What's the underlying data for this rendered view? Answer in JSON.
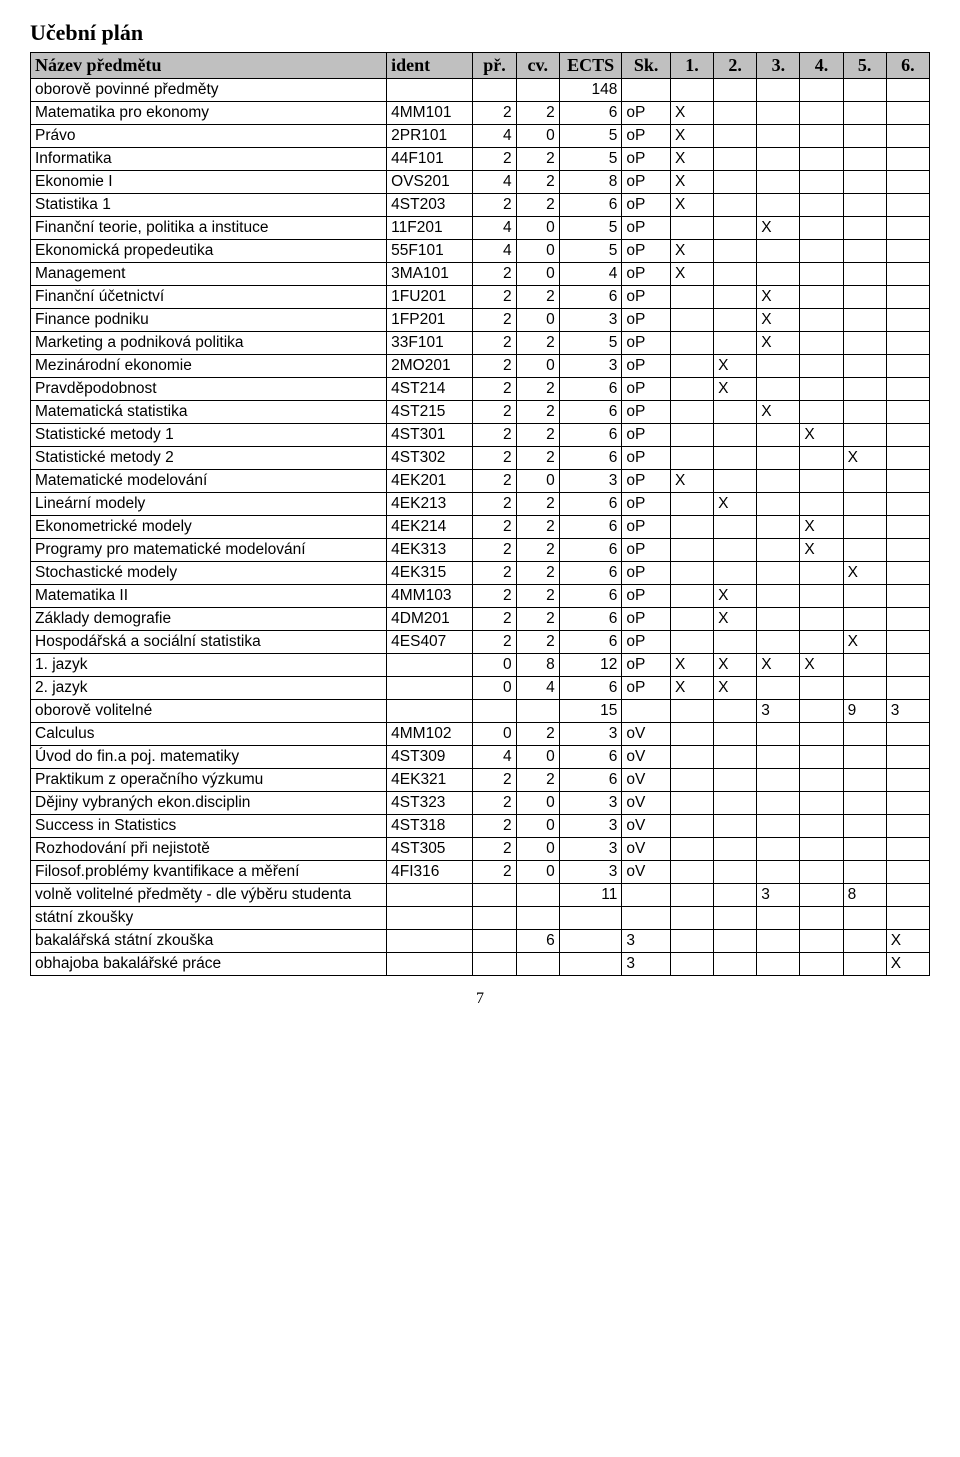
{
  "title": "Učební plán",
  "page_number": "7",
  "columns": [
    "Název předmětu",
    "ident",
    "př.",
    "cv.",
    "ECTS",
    "Sk.",
    "1.",
    "2.",
    "3.",
    "4.",
    "5.",
    "6."
  ],
  "rows": [
    {
      "name": "oborově povinné předměty",
      "ident": "",
      "pr": "",
      "cv": "",
      "ects": "148",
      "sk": "",
      "s1": "",
      "s2": "",
      "s3": "",
      "s4": "",
      "s5": "",
      "s6": ""
    },
    {
      "name": "Matematika pro ekonomy",
      "ident": "4MM101",
      "pr": "2",
      "cv": "2",
      "ects": "6",
      "sk": "oP",
      "s1": "X",
      "s2": "",
      "s3": "",
      "s4": "",
      "s5": "",
      "s6": ""
    },
    {
      "name": "Právo",
      "ident": "2PR101",
      "pr": "4",
      "cv": "0",
      "ects": "5",
      "sk": "oP",
      "s1": "X",
      "s2": "",
      "s3": "",
      "s4": "",
      "s5": "",
      "s6": ""
    },
    {
      "name": "Informatika",
      "ident": "44F101",
      "pr": "2",
      "cv": "2",
      "ects": "5",
      "sk": "oP",
      "s1": "X",
      "s2": "",
      "s3": "",
      "s4": "",
      "s5": "",
      "s6": ""
    },
    {
      "name": "Ekonomie I",
      "ident": "OVS201",
      "pr": "4",
      "cv": "2",
      "ects": "8",
      "sk": "oP",
      "s1": "X",
      "s2": "",
      "s3": "",
      "s4": "",
      "s5": "",
      "s6": ""
    },
    {
      "name": "Statistika 1",
      "ident": "4ST203",
      "pr": "2",
      "cv": "2",
      "ects": "6",
      "sk": "oP",
      "s1": "X",
      "s2": "",
      "s3": "",
      "s4": "",
      "s5": "",
      "s6": ""
    },
    {
      "name": "Finanční teorie, politika a instituce",
      "ident": "11F201",
      "pr": "4",
      "cv": "0",
      "ects": "5",
      "sk": "oP",
      "s1": "",
      "s2": "",
      "s3": "X",
      "s4": "",
      "s5": "",
      "s6": ""
    },
    {
      "name": "Ekonomická propedeutika",
      "ident": "55F101",
      "pr": "4",
      "cv": "0",
      "ects": "5",
      "sk": "oP",
      "s1": "X",
      "s2": "",
      "s3": "",
      "s4": "",
      "s5": "",
      "s6": ""
    },
    {
      "name": "Management",
      "ident": "3MA101",
      "pr": "2",
      "cv": "0",
      "ects": "4",
      "sk": "oP",
      "s1": "X",
      "s2": "",
      "s3": "",
      "s4": "",
      "s5": "",
      "s6": ""
    },
    {
      "name": "Finanční účetnictví",
      "ident": "1FU201",
      "pr": "2",
      "cv": "2",
      "ects": "6",
      "sk": "oP",
      "s1": "",
      "s2": "",
      "s3": "X",
      "s4": "",
      "s5": "",
      "s6": ""
    },
    {
      "name": "Finance podniku",
      "ident": "1FP201",
      "pr": "2",
      "cv": "0",
      "ects": "3",
      "sk": "oP",
      "s1": "",
      "s2": "",
      "s3": "X",
      "s4": "",
      "s5": "",
      "s6": ""
    },
    {
      "name": "Marketing a podniková politika",
      "ident": "33F101",
      "pr": "2",
      "cv": "2",
      "ects": "5",
      "sk": "oP",
      "s1": "",
      "s2": "",
      "s3": "X",
      "s4": "",
      "s5": "",
      "s6": ""
    },
    {
      "name": "Mezinárodní ekonomie",
      "ident": "2MO201",
      "pr": "2",
      "cv": "0",
      "ects": "3",
      "sk": "oP",
      "s1": "",
      "s2": "X",
      "s3": "",
      "s4": "",
      "s5": "",
      "s6": ""
    },
    {
      "name": "Pravděpodobnost",
      "ident": "4ST214",
      "pr": "2",
      "cv": "2",
      "ects": "6",
      "sk": "oP",
      "s1": "",
      "s2": "X",
      "s3": "",
      "s4": "",
      "s5": "",
      "s6": ""
    },
    {
      "name": "Matematická statistika",
      "ident": "4ST215",
      "pr": "2",
      "cv": "2",
      "ects": "6",
      "sk": "oP",
      "s1": "",
      "s2": "",
      "s3": "X",
      "s4": "",
      "s5": "",
      "s6": ""
    },
    {
      "name": "Statistické metody 1",
      "ident": "4ST301",
      "pr": "2",
      "cv": "2",
      "ects": "6",
      "sk": "oP",
      "s1": "",
      "s2": "",
      "s3": "",
      "s4": "X",
      "s5": "",
      "s6": ""
    },
    {
      "name": "Statistické metody 2",
      "ident": "4ST302",
      "pr": "2",
      "cv": "2",
      "ects": "6",
      "sk": "oP",
      "s1": "",
      "s2": "",
      "s3": "",
      "s4": "",
      "s5": "X",
      "s6": ""
    },
    {
      "name": "Matematické modelování",
      "ident": "4EK201",
      "pr": "2",
      "cv": "0",
      "ects": "3",
      "sk": "oP",
      "s1": "X",
      "s2": "",
      "s3": "",
      "s4": "",
      "s5": "",
      "s6": ""
    },
    {
      "name": "Lineární modely",
      "ident": "4EK213",
      "pr": "2",
      "cv": "2",
      "ects": "6",
      "sk": "oP",
      "s1": "",
      "s2": "X",
      "s3": "",
      "s4": "",
      "s5": "",
      "s6": ""
    },
    {
      "name": "Ekonometrické modely",
      "ident": "4EK214",
      "pr": "2",
      "cv": "2",
      "ects": "6",
      "sk": "oP",
      "s1": "",
      "s2": "",
      "s3": "",
      "s4": "X",
      "s5": "",
      "s6": ""
    },
    {
      "name": "Programy pro matematické modelování",
      "ident": "4EK313",
      "pr": "2",
      "cv": "2",
      "ects": "6",
      "sk": "oP",
      "s1": "",
      "s2": "",
      "s3": "",
      "s4": "X",
      "s5": "",
      "s6": ""
    },
    {
      "name": "Stochastické modely",
      "ident": "4EK315",
      "pr": "2",
      "cv": "2",
      "ects": "6",
      "sk": "oP",
      "s1": "",
      "s2": "",
      "s3": "",
      "s4": "",
      "s5": "X",
      "s6": ""
    },
    {
      "name": "Matematika II",
      "ident": "4MM103",
      "pr": "2",
      "cv": "2",
      "ects": "6",
      "sk": "oP",
      "s1": "",
      "s2": "X",
      "s3": "",
      "s4": "",
      "s5": "",
      "s6": ""
    },
    {
      "name": "Základy demografie",
      "ident": "4DM201",
      "pr": "2",
      "cv": "2",
      "ects": "6",
      "sk": "oP",
      "s1": "",
      "s2": "X",
      "s3": "",
      "s4": "",
      "s5": "",
      "s6": ""
    },
    {
      "name": "Hospodářská a sociální statistika",
      "ident": "4ES407",
      "pr": "2",
      "cv": "2",
      "ects": "6",
      "sk": "oP",
      "s1": "",
      "s2": "",
      "s3": "",
      "s4": "",
      "s5": "X",
      "s6": ""
    },
    {
      "name": "1. jazyk",
      "ident": "",
      "pr": "0",
      "cv": "8",
      "ects": "12",
      "sk": "oP",
      "s1": "X",
      "s2": "X",
      "s3": "X",
      "s4": "X",
      "s5": "",
      "s6": ""
    },
    {
      "name": "2. jazyk",
      "ident": "",
      "pr": "0",
      "cv": "4",
      "ects": "6",
      "sk": "oP",
      "s1": "X",
      "s2": "X",
      "s3": "",
      "s4": "",
      "s5": "",
      "s6": ""
    },
    {
      "name": "oborově volitelné",
      "ident": "",
      "pr": "",
      "cv": "",
      "ects": "15",
      "sk": "",
      "s1": "",
      "s2": "",
      "s3": "3",
      "s4": "",
      "s5": "9",
      "s6": "3"
    },
    {
      "name": "Calculus",
      "ident": "4MM102",
      "pr": "0",
      "cv": "2",
      "ects": "3",
      "sk": "oV",
      "s1": "",
      "s2": "",
      "s3": "",
      "s4": "",
      "s5": "",
      "s6": ""
    },
    {
      "name": "Úvod do fin.a poj. matematiky",
      "ident": "4ST309",
      "pr": "4",
      "cv": "0",
      "ects": "6",
      "sk": "oV",
      "s1": "",
      "s2": "",
      "s3": "",
      "s4": "",
      "s5": "",
      "s6": ""
    },
    {
      "name": "Praktikum z operačního výzkumu",
      "ident": "4EK321",
      "pr": "2",
      "cv": "2",
      "ects": "6",
      "sk": "oV",
      "s1": "",
      "s2": "",
      "s3": "",
      "s4": "",
      "s5": "",
      "s6": ""
    },
    {
      "name": "Dějiny vybraných ekon.disciplin",
      "ident": "4ST323",
      "pr": "2",
      "cv": "0",
      "ects": "3",
      "sk": "oV",
      "s1": "",
      "s2": "",
      "s3": "",
      "s4": "",
      "s5": "",
      "s6": ""
    },
    {
      "name": "Success in Statistics",
      "ident": "4ST318",
      "pr": "2",
      "cv": "0",
      "ects": "3",
      "sk": "oV",
      "s1": "",
      "s2": "",
      "s3": "",
      "s4": "",
      "s5": "",
      "s6": ""
    },
    {
      "name": "Rozhodování při nejistotě",
      "ident": "4ST305",
      "pr": "2",
      "cv": "0",
      "ects": "3",
      "sk": "oV",
      "s1": "",
      "s2": "",
      "s3": "",
      "s4": "",
      "s5": "",
      "s6": ""
    },
    {
      "name": "Filosof.problémy kvantifikace a měření",
      "ident": "4FI316",
      "pr": "2",
      "cv": "0",
      "ects": "3",
      "sk": "oV",
      "s1": "",
      "s2": "",
      "s3": "",
      "s4": "",
      "s5": "",
      "s6": ""
    },
    {
      "name": "volně volitelné předměty - dle výběru studenta",
      "ident": "",
      "pr": "",
      "cv": "",
      "ects": "11",
      "sk": "",
      "s1": "",
      "s2": "",
      "s3": "3",
      "s4": "",
      "s5": "8",
      "s6": "",
      "name_wrap": true
    },
    {
      "name": "státní zkoušky",
      "ident": "",
      "pr": "",
      "cv": "",
      "ects": "",
      "sk": "",
      "s1": "",
      "s2": "",
      "s3": "",
      "s4": "",
      "s5": "",
      "s6": ""
    },
    {
      "name": "bakalářská státní zkouška",
      "ident": "",
      "pr": "",
      "cv": "6",
      "ects": "",
      "sk": "3",
      "s1": "",
      "s2": "",
      "s3": "",
      "s4": "",
      "s5": "",
      "s6": "X"
    },
    {
      "name": "obhajoba bakalářské práce",
      "ident": "",
      "pr": "",
      "cv": "",
      "ects": "",
      "sk": "3",
      "s1": "",
      "s2": "",
      "s3": "",
      "s4": "",
      "s5": "",
      "s6": "X"
    }
  ]
}
